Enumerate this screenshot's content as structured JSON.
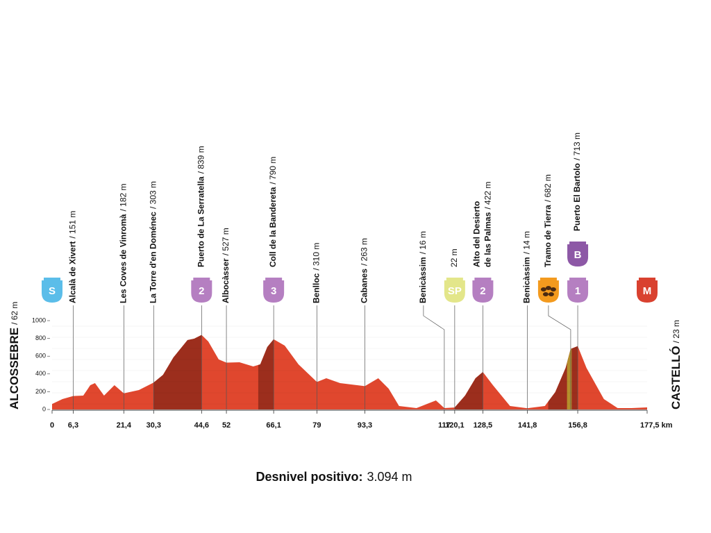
{
  "chart_data": {
    "type": "elevation-profile",
    "xlim": [
      0,
      177.5
    ],
    "ylim": [
      0,
      1000
    ],
    "yticks": [
      0,
      200,
      400,
      600,
      800,
      1000
    ],
    "xticks": [
      0,
      {
        "value": 6.3,
        "label": "6,3"
      },
      {
        "value": 21.4,
        "label": "21,4"
      },
      {
        "value": 30.3,
        "label": "30,3"
      },
      {
        "value": 44.6,
        "label": "44,6"
      },
      52,
      {
        "value": 66.1,
        "label": "66,1"
      },
      79,
      {
        "value": 93.3,
        "label": "93,3"
      },
      117,
      {
        "value": 120.1,
        "label": "120,1"
      },
      {
        "value": 128.5,
        "label": "128,5"
      },
      {
        "value": 141.8,
        "label": "141,8"
      },
      {
        "value": 156.8,
        "label": "156,8"
      },
      {
        "value": 177.5,
        "label": "177,5 km"
      }
    ],
    "color": "#e0472e",
    "climb_color": "#9c2e1d",
    "gravel_color": "#b5902c",
    "profile": {
      "x": [
        0,
        3.1,
        6.3,
        9.3,
        11.4,
        12.8,
        15.5,
        18.6,
        21.4,
        25.9,
        30.3,
        33.1,
        36.2,
        40.4,
        42.4,
        44.6,
        46.6,
        49.7,
        52,
        55.9,
        60,
        62.1,
        64.2,
        66.1,
        69.4,
        73.5,
        79,
        81.8,
        85.9,
        93.3,
        97.3,
        100.4,
        103.5,
        108.7,
        114.5,
        117,
        120.1,
        123.2,
        126.3,
        128.5,
        131.5,
        136.6,
        141.8,
        147,
        150.1,
        153.2,
        154.7,
        156.8,
        159.4,
        164.6,
        168.7,
        172.9,
        177.5
      ],
      "elevation": [
        62,
        117,
        151,
        156,
        273,
        297,
        156,
        273,
        182,
        219,
        303,
        390,
        586,
        781,
        797,
        839,
        766,
        563,
        527,
        531,
        484,
        508,
        703,
        790,
        719,
        508,
        310,
        352,
        297,
        263,
        352,
        234,
        39,
        16,
        102,
        16,
        22,
        156,
        352,
        422,
        273,
        39,
        14,
        39,
        195,
        469,
        682,
        713,
        469,
        117,
        16,
        16,
        23
      ]
    },
    "climb_segments": [
      [
        30.3,
        44.6
      ],
      [
        61.5,
        66.1
      ],
      [
        120.1,
        128.5
      ],
      [
        148,
        156.8
      ]
    ],
    "gravel_segment": [
      153.6,
      155
    ],
    "start": {
      "name": "ALCOSSEBRE",
      "altitude": "/ 62 m",
      "badges": [
        {
          "text": "S",
          "color": "#5bbde9"
        }
      ]
    },
    "finish": {
      "name": "CASTELLÓ",
      "altitude": "/ 23 m",
      "badges": [
        {
          "text": "M",
          "color": "#d9412f"
        }
      ]
    },
    "waypoints": [
      {
        "name": "Alcalà de Xivert",
        "altitude": "/ 151 m",
        "km": 6.3
      },
      {
        "name": "Les Coves de Vinromà",
        "altitude": "/ 182 m",
        "km": 21.4
      },
      {
        "name": "La Torre d'en Doménec",
        "altitude": "/ 303 m",
        "km": 30.3
      },
      {
        "name": "Puerto de La Serratella",
        "altitude": "/ 839 m",
        "km": 44.6,
        "badges": [
          {
            "text": "2",
            "color": "#b57fc1"
          }
        ]
      },
      {
        "name": "Albocàsser",
        "altitude": "/ 527 m",
        "km": 52
      },
      {
        "name": "Coll de la Bandereta",
        "altitude": "/ 790 m",
        "km": 66.1,
        "badges": [
          {
            "text": "3",
            "color": "#b57fc1"
          }
        ]
      },
      {
        "name": "Benlloc",
        "altitude": "/ 310 m",
        "km": 79
      },
      {
        "name": "Cabanes",
        "altitude": "/ 263 m",
        "km": 93.3
      },
      {
        "name": "Benicàssim",
        "altitude": "/ 16 m",
        "km": 117
      },
      {
        "altitude": "22 m",
        "km": 120.1,
        "badges": [
          {
            "text": "SP",
            "color": "#e3e68a"
          }
        ]
      },
      {
        "name": [
          "Alto del Desierto",
          "de las Palmas"
        ],
        "altitude": "/ 422 m",
        "km": 128.5,
        "badges": [
          {
            "text": "2",
            "color": "#b57fc1"
          }
        ]
      },
      {
        "name": "Benicàssim",
        "altitude": "/ 14 m",
        "km": 141.8
      },
      {
        "name": "Tramo de Tierra",
        "altitude": "/ 682 m",
        "km": 154.7,
        "badges": [
          {
            "color": "#f39a1e"
          }
        ]
      },
      {
        "name": "Puerto El Bartolo",
        "altitude": "/ 713 m",
        "km": 156.8,
        "badges": [
          {
            "text": "1",
            "color": "#b57fc1"
          },
          {
            "text": "B",
            "color": "#8d58a6"
          }
        ]
      }
    ],
    "note": {
      "label": "Desnivel positivo:",
      "value": "3.094 m"
    }
  }
}
